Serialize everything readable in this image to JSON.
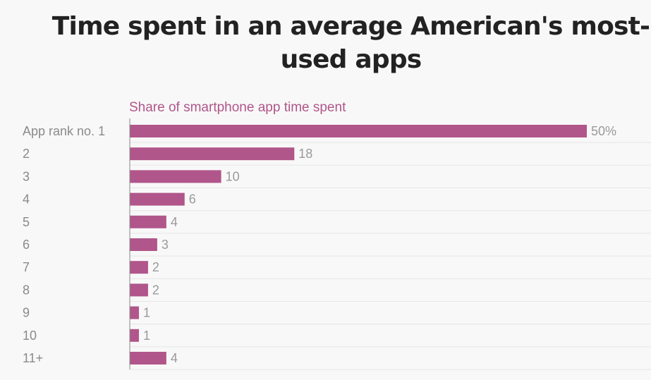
{
  "title": {
    "line1": "Time spent in an average American's most-",
    "line2": "used apps"
  },
  "subtitle": "Share of smartphone app time spent",
  "colors": {
    "bar": "#b0568a",
    "background": "#f8f8f8",
    "grid": "#e6e6e6",
    "axis": "#888888"
  },
  "chart_data": {
    "type": "bar",
    "orientation": "horizontal",
    "title": "Time spent in an average American's most-used apps",
    "subtitle": "Share of smartphone app time spent",
    "categories": [
      "App rank no. 1",
      "2",
      "3",
      "4",
      "5",
      "6",
      "7",
      "8",
      "9",
      "10",
      "11+"
    ],
    "values": [
      50,
      18,
      10,
      6,
      4,
      3,
      2,
      2,
      1,
      1,
      4
    ],
    "data_labels": [
      "50%",
      "18",
      "10",
      "6",
      "4",
      "3",
      "2",
      "2",
      "1",
      "1",
      "4"
    ],
    "xlim": [
      0,
      50
    ],
    "unit": "%",
    "grid": true
  }
}
